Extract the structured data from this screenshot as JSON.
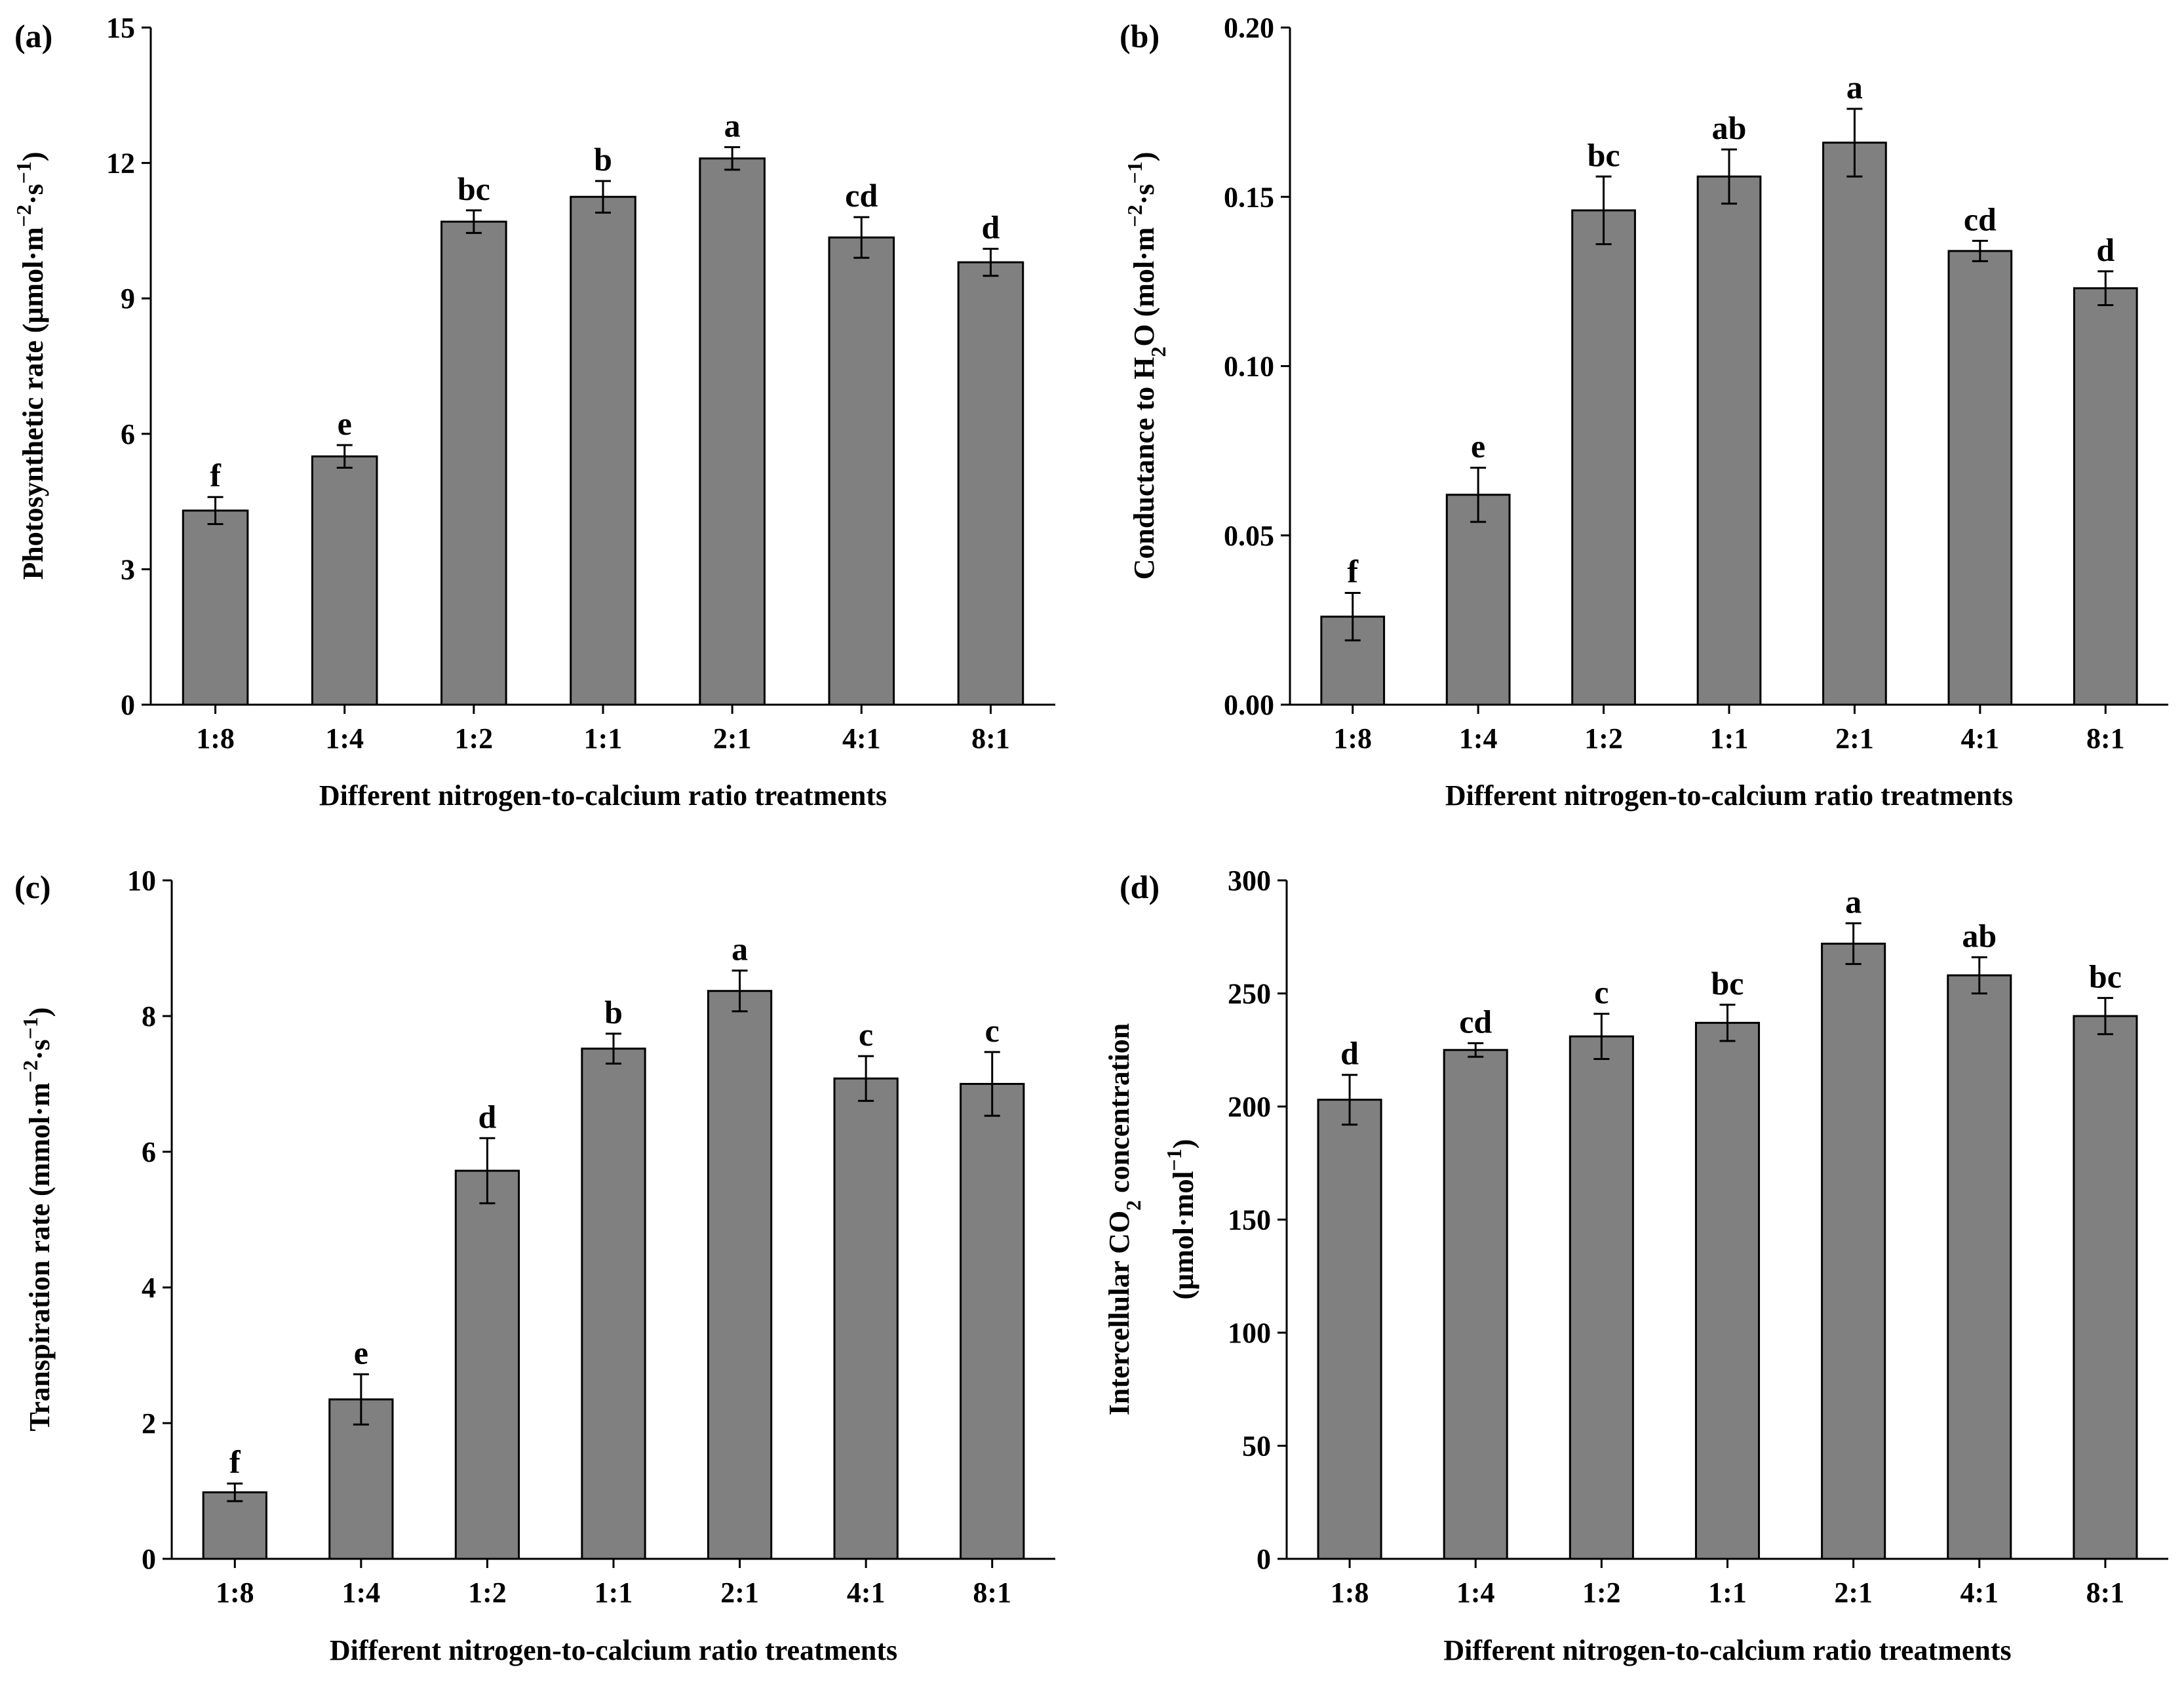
{
  "chart_data": [
    {
      "type": "bar",
      "panel_label": "(a)",
      "categories": [
        "1:8",
        "1:4",
        "1:2",
        "1:1",
        "2:1",
        "4:1",
        "8:1"
      ],
      "values": [
        4.3,
        5.5,
        10.7,
        11.25,
        12.1,
        10.35,
        9.8
      ],
      "errors": [
        0.3,
        0.25,
        0.25,
        0.35,
        0.25,
        0.45,
        0.3
      ],
      "significance": [
        "f",
        "e",
        "bc",
        "b",
        "a",
        "cd",
        "d"
      ],
      "ylabel": [
        "Photosynthetic rate (μmol·m",
        "−2",
        "·s",
        "−1",
        ")"
      ],
      "xlabel": "Different nitrogen-to-calcium ratio treatments",
      "ylim": [
        0,
        15
      ],
      "yticks": [
        0,
        3,
        6,
        9,
        12,
        15
      ],
      "ytick_labels": [
        "0",
        "3",
        "6",
        "9",
        "12",
        "15"
      ]
    },
    {
      "type": "bar",
      "panel_label": "(b)",
      "categories": [
        "1:8",
        "1:4",
        "1:2",
        "1:1",
        "2:1",
        "4:1",
        "8:1"
      ],
      "values": [
        0.026,
        0.062,
        0.146,
        0.156,
        0.166,
        0.134,
        0.123
      ],
      "errors": [
        0.007,
        0.008,
        0.01,
        0.008,
        0.01,
        0.003,
        0.005
      ],
      "significance": [
        "f",
        "e",
        "bc",
        "ab",
        "a",
        "cd",
        "d"
      ],
      "ylabel": [
        "Conductance to H",
        "2",
        "O (mol·m",
        "−2",
        "·s",
        "−1",
        ")"
      ],
      "xlabel": "Different nitrogen-to-calcium ratio treatments",
      "ylim": [
        0,
        0.2
      ],
      "yticks": [
        0,
        0.05,
        0.1,
        0.15,
        0.2
      ],
      "ytick_labels": [
        "0.00",
        "0.05",
        "0.10",
        "0.15",
        "0.20"
      ]
    },
    {
      "type": "bar",
      "panel_label": "(c)",
      "categories": [
        "1:8",
        "1:4",
        "1:2",
        "1:1",
        "2:1",
        "4:1",
        "8:1"
      ],
      "values": [
        0.98,
        2.35,
        5.72,
        7.52,
        8.37,
        7.08,
        7.0
      ],
      "errors": [
        0.13,
        0.37,
        0.48,
        0.22,
        0.3,
        0.33,
        0.47
      ],
      "significance": [
        "f",
        "e",
        "d",
        "b",
        "a",
        "c",
        "c"
      ],
      "ylabel": [
        "Transpiration rate (mmol·m",
        "−2",
        "·s",
        "−1",
        ")"
      ],
      "xlabel": "Different nitrogen-to-calcium ratio treatments",
      "ylim": [
        0,
        10
      ],
      "yticks": [
        0,
        2,
        4,
        6,
        8,
        10
      ],
      "ytick_labels": [
        "0",
        "2",
        "4",
        "6",
        "8",
        "10"
      ]
    },
    {
      "type": "bar",
      "panel_label": "(d)",
      "categories": [
        "1:8",
        "1:4",
        "1:2",
        "1:1",
        "2:1",
        "4:1",
        "8:1"
      ],
      "values": [
        203,
        225,
        231,
        237,
        272,
        258,
        240
      ],
      "errors": [
        11,
        3,
        10,
        8,
        9,
        8,
        8
      ],
      "significance": [
        "d",
        "cd",
        "c",
        "bc",
        "a",
        "ab",
        "bc"
      ],
      "ylabel_line1": [
        "Intercellular CO",
        "2",
        " concentration"
      ],
      "ylabel_line2": [
        "(μmol·mol",
        "−1",
        ")"
      ],
      "xlabel": "Different nitrogen-to-calcium ratio treatments",
      "ylim": [
        0,
        300
      ],
      "yticks": [
        0,
        50,
        100,
        150,
        200,
        250,
        300
      ],
      "ytick_labels": [
        "0",
        "50",
        "100",
        "150",
        "200",
        "250",
        "300"
      ]
    }
  ]
}
